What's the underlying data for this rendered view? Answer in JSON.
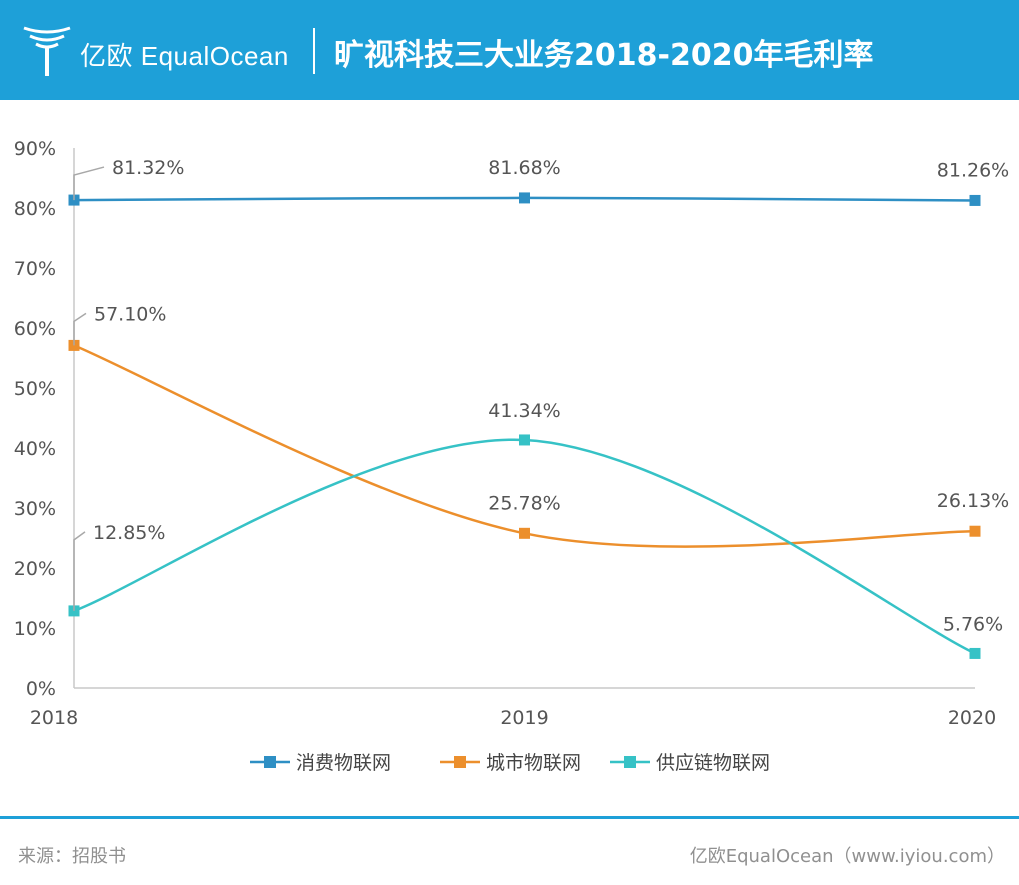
{
  "header": {
    "logo_text": "亿欧 EqualOcean",
    "title": "旷视科技三大业务2018-2020年毛利率"
  },
  "chart_data": {
    "type": "line",
    "title": "旷视科技三大业务2018-2020年毛利率",
    "x": [
      "2018",
      "2019",
      "2020"
    ],
    "ylim": [
      0,
      90
    ],
    "yticks": [
      "0%",
      "10%",
      "20%",
      "30%",
      "40%",
      "50%",
      "60%",
      "70%",
      "80%",
      "90%"
    ],
    "grid": false,
    "legend_position": "bottom",
    "smooth": true,
    "series": [
      {
        "name": "消费物联网",
        "color": "#2e8fc4",
        "values": [
          81.32,
          81.68,
          81.26
        ],
        "labels": [
          "81.32%",
          "81.68%",
          "81.26%"
        ]
      },
      {
        "name": "城市物联网",
        "color": "#ec8f2c",
        "values": [
          57.1,
          25.78,
          26.13
        ],
        "labels": [
          "57.10%",
          "25.78%",
          "26.13%"
        ]
      },
      {
        "name": "供应链物联网",
        "color": "#36c2c6",
        "values": [
          12.85,
          41.34,
          5.76
        ],
        "labels": [
          "12.85%",
          "41.34%",
          "5.76%"
        ]
      }
    ]
  },
  "footer": {
    "source": "来源：招股书",
    "credit": "亿欧EqualOcean（www.iyiou.com）"
  }
}
